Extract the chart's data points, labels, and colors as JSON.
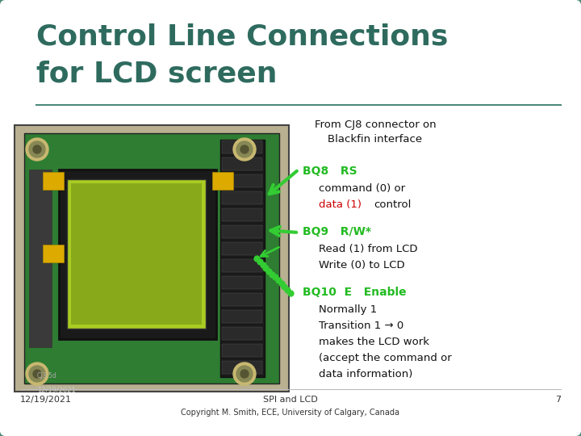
{
  "title_line1": "Control Line Connections",
  "title_line2": "for LCD screen",
  "title_color": "#2E6B5E",
  "title_fontsize": 26,
  "bg_color": "#E8E8E8",
  "border_color": "#4A8A7A",
  "from_text_line1": "From CJ8 connector on",
  "from_text_line2": "Blackfin interface",
  "from_text_color": "#111111",
  "from_text_fontsize": 9.5,
  "bq8_label": "BQ8   RS",
  "bq8_color": "#22BB22",
  "bq8_desc1": "command (0) or",
  "bq8_desc2_red": "data (1)   ",
  "bq8_desc2_black": "control",
  "bq8_desc_color": "#111111",
  "bq8_red_color": "#CC0000",
  "bq9_label": "BQ9   R/W*",
  "bq9_color": "#22BB22",
  "bq9_desc1": "Read (1) from LCD",
  "bq9_desc2": "Write (0) to LCD",
  "bq9_desc_color": "#111111",
  "bq10_label": "BQ10  E   Enable",
  "bq10_color": "#22BB22",
  "bq10_desc1": "Normally 1",
  "bq10_desc2": "Transition 1 → 0",
  "bq10_desc3": "makes the LCD work",
  "bq10_desc4": "(accept the command or",
  "bq10_desc5": "data information)",
  "bq10_desc_color": "#111111",
  "footer_date": "12/19/2021",
  "footer_title": "SPI and LCD",
  "footer_page": "7",
  "footer_copy": "Copyright M. Smith, ECE, University of Calgary, Canada",
  "footer_color": "#333333",
  "footer_fontsize": 8,
  "sep_line_color": "#4A8A7A",
  "arrow_color": "#33CC33",
  "label_fontsize": 10,
  "desc_fontsize": 9.5
}
